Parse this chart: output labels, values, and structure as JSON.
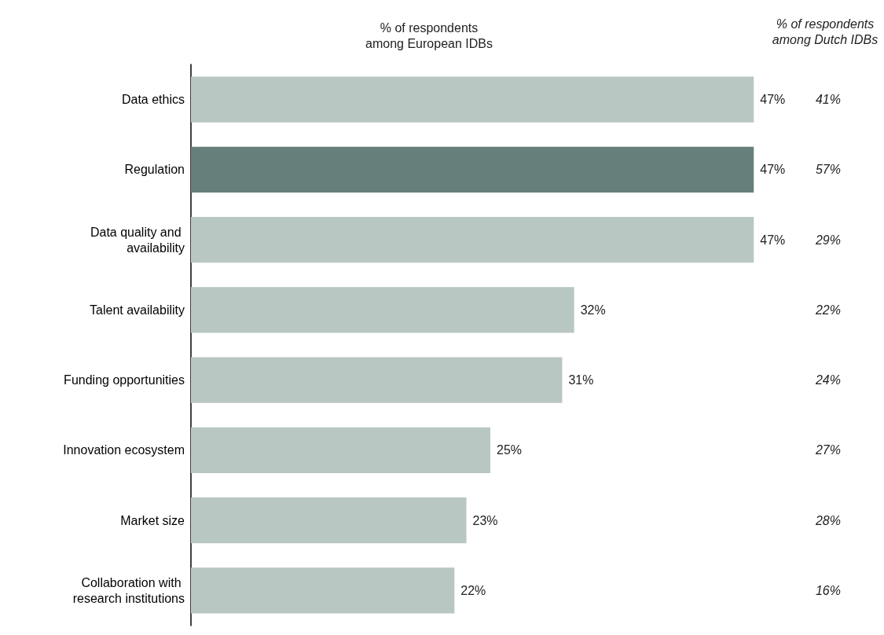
{
  "chart_data": {
    "type": "bar",
    "orientation": "horizontal",
    "xlabel": "% of respondents\namong European IDBs",
    "categories": [
      "Data ethics",
      "Regulation",
      "Data quality and availability",
      "Talent availability",
      "Funding opportunities",
      "Innovation ecosystem",
      "Market size",
      "Collaboration with research institutions"
    ],
    "values": [
      47,
      47,
      47,
      32,
      31,
      25,
      23,
      22
    ],
    "colors": [
      "#b8c7c2",
      "#677f7a",
      "#b8c7c2",
      "#b8c7c2",
      "#b8c7c2",
      "#b8c7c2",
      "#b8c7c2",
      "#b8c7c2"
    ],
    "value_labels": [
      "47%",
      "47%",
      "47%",
      "32%",
      "31%",
      "25%",
      "23%",
      "22%"
    ],
    "tick_labels": "y",
    "annotations": [
      "% of respondents\namong Dutch IDBs",
      "41%",
      "57%",
      "29%",
      "22%",
      "24%",
      "27%",
      "28%",
      "16%"
    ]
  }
}
